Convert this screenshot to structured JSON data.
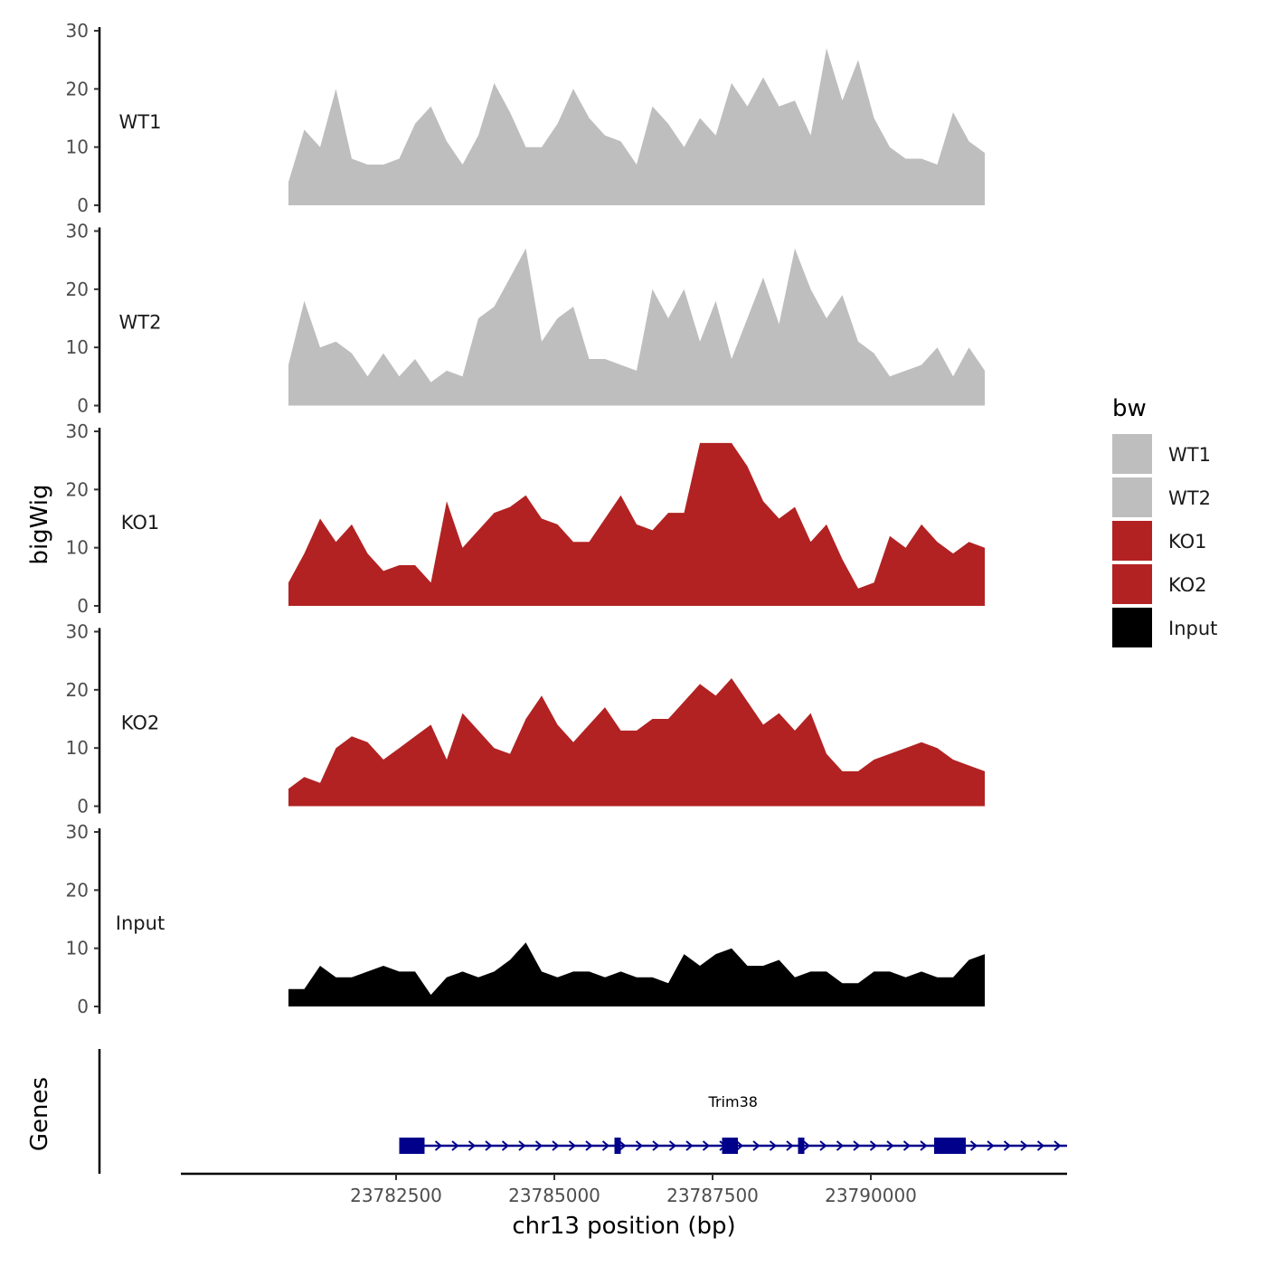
{
  "chart_data": {
    "type": "area",
    "chromosome": "chr13",
    "xlabel": "chr13 position (bp)",
    "ylabel": "bigWig",
    "genes_ylabel": "Genes",
    "xlim": [
      23779100,
      23793100
    ],
    "x_ticks": [
      23782500,
      23785000,
      23787500,
      23790000
    ],
    "x_tick_labels": [
      "23782500",
      "23785000",
      "23787500",
      "23790000"
    ],
    "ylim": [
      0,
      30
    ],
    "y_ticks": [
      0,
      10,
      20,
      30
    ],
    "y_tick_labels": [
      "0",
      "10",
      "20",
      "30"
    ],
    "legend": {
      "title": "bw",
      "entries": [
        {
          "label": "WT1",
          "color": "#bebebe"
        },
        {
          "label": "WT2",
          "color": "#bebebe"
        },
        {
          "label": "KO1",
          "color": "#b22222"
        },
        {
          "label": "KO2",
          "color": "#b22222"
        },
        {
          "label": "Input",
          "color": "#000000"
        }
      ]
    },
    "x_start": 23780800,
    "x_step": 250,
    "series": [
      {
        "name": "WT1",
        "color": "#bebebe",
        "values": [
          4,
          13,
          10,
          20,
          8,
          7,
          7,
          8,
          14,
          17,
          11,
          7,
          12,
          21,
          16,
          10,
          10,
          14,
          20,
          15,
          12,
          11,
          7,
          17,
          14,
          10,
          15,
          12,
          21,
          17,
          22,
          17,
          18,
          12,
          27,
          18,
          25,
          15,
          10,
          8,
          8,
          7,
          16,
          11,
          9
        ]
      },
      {
        "name": "WT2",
        "color": "#bebebe",
        "values": [
          7,
          18,
          10,
          11,
          9,
          5,
          9,
          5,
          8,
          4,
          6,
          5,
          15,
          17,
          22,
          27,
          11,
          15,
          17,
          8,
          8,
          7,
          6,
          20,
          15,
          20,
          11,
          18,
          8,
          15,
          22,
          14,
          27,
          20,
          15,
          19,
          11,
          9,
          5,
          6,
          7,
          10,
          5,
          10,
          6
        ]
      },
      {
        "name": "KO1",
        "color": "#b22222",
        "values": [
          4,
          9,
          15,
          11,
          14,
          9,
          6,
          7,
          7,
          4,
          18,
          10,
          13,
          16,
          17,
          19,
          15,
          14,
          11,
          11,
          15,
          19,
          14,
          13,
          16,
          16,
          28,
          28,
          28,
          24,
          18,
          15,
          17,
          11,
          14,
          8,
          3,
          4,
          12,
          10,
          14,
          11,
          9,
          11,
          10
        ]
      },
      {
        "name": "KO2",
        "color": "#b22222",
        "values": [
          3,
          5,
          4,
          10,
          12,
          11,
          8,
          10,
          12,
          14,
          8,
          16,
          13,
          10,
          9,
          15,
          19,
          14,
          11,
          14,
          17,
          13,
          13,
          15,
          15,
          18,
          21,
          19,
          22,
          18,
          14,
          16,
          13,
          16,
          9,
          6,
          6,
          8,
          9,
          10,
          11,
          10,
          8,
          7,
          6
        ]
      },
      {
        "name": "Input",
        "color": "#000000",
        "values": [
          3,
          3,
          7,
          5,
          5,
          6,
          7,
          6,
          6,
          2,
          5,
          6,
          5,
          6,
          8,
          11,
          6,
          5,
          6,
          6,
          5,
          6,
          5,
          5,
          4,
          9,
          7,
          9,
          10,
          7,
          7,
          8,
          5,
          6,
          6,
          4,
          4,
          6,
          6,
          5,
          6,
          5,
          5,
          8,
          9
        ]
      }
    ],
    "gene_track": {
      "gene_name": "Trim38",
      "color": "#00008b",
      "strand": "+",
      "start": 23782550,
      "end": 23793100,
      "exons": [
        [
          23782550,
          23782950
        ],
        [
          23785950,
          23786050
        ],
        [
          23787650,
          23787900
        ],
        [
          23788850,
          23788950
        ],
        [
          23791000,
          23791500
        ]
      ]
    }
  }
}
